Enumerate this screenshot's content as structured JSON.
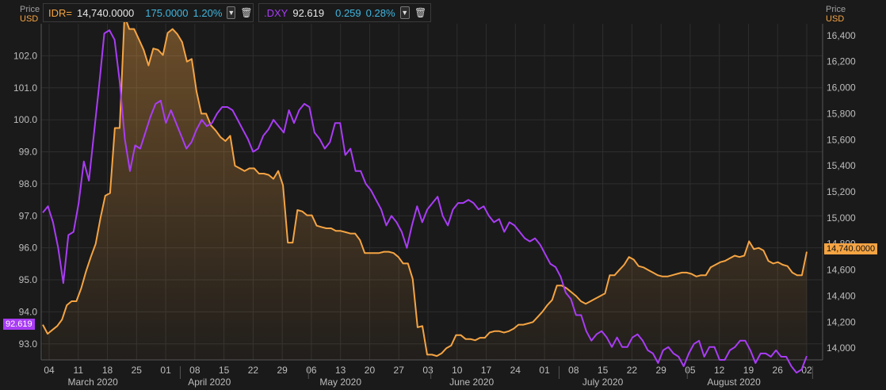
{
  "legend": [
    {
      "symbol": "IDR=",
      "value": "14,740.0000",
      "change": "175.0000",
      "pct": "1.20%",
      "color": "#f5a443"
    },
    {
      "symbol": ".DXY",
      "value": "92.619",
      "change": "0.259",
      "pct": "0.28%",
      "color": "#a93cf5"
    }
  ],
  "left_axis": {
    "title1": "Price",
    "title2": "USD"
  },
  "right_axis": {
    "title1": "Price",
    "title2": "USD"
  },
  "tags": {
    "dxy_last": "92.619",
    "idr_last": "14,740.0000"
  },
  "chart_data": {
    "type": "line",
    "x_ticks": [
      "04",
      "11",
      "18",
      "25",
      "01",
      "08",
      "15",
      "22",
      "29",
      "06",
      "13",
      "20",
      "27",
      "03",
      "10",
      "17",
      "24",
      "01",
      "08",
      "15",
      "22",
      "29",
      "05",
      "12",
      "19",
      "26",
      "02"
    ],
    "months": [
      "March 2020",
      "April 2020",
      "May 2020",
      "June 2020",
      "July 2020",
      "August 2020"
    ],
    "left_ticks": [
      "93.0",
      "94.0",
      "95.0",
      "96.0",
      "97.0",
      "98.0",
      "99.0",
      "100.0",
      "101.0",
      "102.0"
    ],
    "right_ticks": [
      "14,000",
      "14,200",
      "14,400",
      "14,600",
      "14,800",
      "15,000",
      "15,200",
      "15,400",
      "15,600",
      "15,800",
      "16,000",
      "16,200",
      "16,400"
    ],
    "left_ylim": [
      92.5,
      103.0
    ],
    "right_ylim": [
      13910,
      16490
    ],
    "grid": true,
    "series": [
      {
        "name": "IDR=",
        "axis": "right",
        "color": "#f5a443",
        "fill": true,
        "values": [
          14180,
          14110,
          14140,
          14170,
          14220,
          14330,
          14360,
          14360,
          14460,
          14590,
          14700,
          14800,
          15000,
          15170,
          15190,
          15690,
          15690,
          16550,
          16450,
          16450,
          16370,
          16290,
          16170,
          16300,
          16290,
          16250,
          16420,
          16450,
          16410,
          16350,
          16200,
          16220,
          15970,
          15800,
          15800,
          15710,
          15670,
          15620,
          15590,
          15630,
          15400,
          15380,
          15360,
          15380,
          15380,
          15340,
          15340,
          15330,
          15300,
          15360,
          15250,
          14810,
          14810,
          15060,
          15050,
          15020,
          15020,
          14940,
          14930,
          14920,
          14920,
          14900,
          14900,
          14890,
          14880,
          14880,
          14830,
          14730,
          14730,
          14730,
          14730,
          14740,
          14740,
          14730,
          14700,
          14650,
          14650,
          14530,
          14160,
          14170,
          13950,
          13950,
          13940,
          13960,
          14000,
          14020,
          14100,
          14100,
          14070,
          14070,
          14060,
          14080,
          14080,
          14120,
          14130,
          14130,
          14120,
          14130,
          14150,
          14180,
          14180,
          14190,
          14200,
          14240,
          14280,
          14330,
          14370,
          14480,
          14480,
          14460,
          14430,
          14400,
          14360,
          14340,
          14360,
          14380,
          14400,
          14420,
          14560,
          14560,
          14600,
          14640,
          14700,
          14680,
          14630,
          14620,
          14600,
          14580,
          14560,
          14550,
          14550,
          14560,
          14570,
          14580,
          14580,
          14570,
          14550,
          14560,
          14560,
          14620,
          14640,
          14660,
          14670,
          14690,
          14710,
          14700,
          14710,
          14820,
          14760,
          14770,
          14750,
          14670,
          14650,
          14660,
          14640,
          14630,
          14580,
          14560,
          14560,
          14740
        ]
      },
      {
        "name": ".DXY",
        "axis": "left",
        "color": "#a93cf5",
        "fill": false,
        "values": [
          97.1,
          97.3,
          96.8,
          96.0,
          94.9,
          96.4,
          96.5,
          97.4,
          98.7,
          98.1,
          99.6,
          101.1,
          102.7,
          102.8,
          102.5,
          101.2,
          99.4,
          98.4,
          99.2,
          99.1,
          99.6,
          100.1,
          100.5,
          100.6,
          99.9,
          100.3,
          99.9,
          99.5,
          99.1,
          99.3,
          99.7,
          100.0,
          99.8,
          99.9,
          100.2,
          100.4,
          100.4,
          100.3,
          100.0,
          99.7,
          99.4,
          99.0,
          99.1,
          99.5,
          99.7,
          100.0,
          99.8,
          99.6,
          100.3,
          99.9,
          100.3,
          100.5,
          100.4,
          99.6,
          99.4,
          99.1,
          99.3,
          99.9,
          99.9,
          98.9,
          99.1,
          98.4,
          98.4,
          98.0,
          97.8,
          97.5,
          97.2,
          96.7,
          97.0,
          96.8,
          96.5,
          96.0,
          96.7,
          97.3,
          96.8,
          97.2,
          97.4,
          97.6,
          97.0,
          96.7,
          97.2,
          97.4,
          97.4,
          97.5,
          97.4,
          97.2,
          97.3,
          97.0,
          96.8,
          96.9,
          96.5,
          96.8,
          96.7,
          96.5,
          96.3,
          96.2,
          96.3,
          96.1,
          95.8,
          95.5,
          95.4,
          95.1,
          94.6,
          94.4,
          93.9,
          93.9,
          93.4,
          93.1,
          93.3,
          93.4,
          93.2,
          92.9,
          93.2,
          92.9,
          92.9,
          93.2,
          93.3,
          93.1,
          92.8,
          92.7,
          92.4,
          92.8,
          92.9,
          92.7,
          92.6,
          92.3,
          92.7,
          93.0,
          93.1,
          92.6,
          92.9,
          92.9,
          92.5,
          92.5,
          92.8,
          92.9,
          93.1,
          93.1,
          92.8,
          92.4,
          92.7,
          92.7,
          92.6,
          92.8,
          92.6,
          92.6,
          92.3,
          92.1,
          92.2,
          92.619
        ]
      }
    ]
  }
}
